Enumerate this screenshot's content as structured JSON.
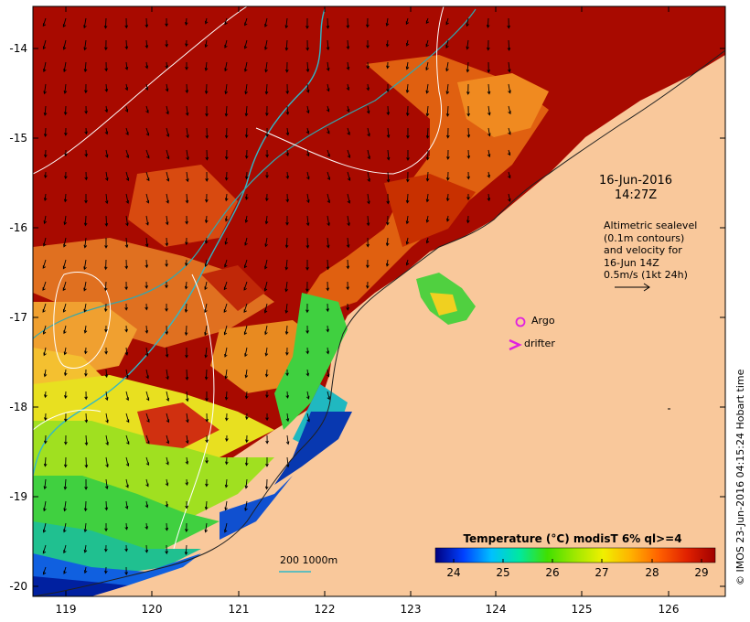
{
  "map": {
    "lat_ticks": [
      "-14",
      "-15",
      "-16",
      "-17",
      "-18",
      "-19",
      "-20"
    ],
    "lon_ticks": [
      "119",
      "120",
      "121",
      "122",
      "123",
      "124",
      "125",
      "126"
    ],
    "date": "16-Jun-2016",
    "time": "14:27Z",
    "info_lines": [
      "Altimetric sealevel",
      "(0.1m contours)",
      "and velocity for",
      "16-Jun 14Z",
      "0.5m/s (1kt 24h)"
    ],
    "argo_label": "Argo",
    "drifter_label": "drifter",
    "depth_label": "200  1000m",
    "credit": "© IMOS 23-Jun-2016 04:15:24 Hobart time",
    "colorbar": {
      "title": "Temperature (°C) modisT 6% ql>=4",
      "ticks": [
        "24",
        "25",
        "26",
        "27",
        "28",
        "29"
      ],
      "colors": [
        "#000080",
        "#0040ff",
        "#00c0ff",
        "#00e8a0",
        "#40e000",
        "#a0e800",
        "#f0f000",
        "#ffb000",
        "#ff6000",
        "#e02000",
        "#a00000"
      ]
    },
    "colors": {
      "land": "#f9c89b",
      "contour_200": "#30b8c8",
      "contour_1000": "#30a8b0",
      "sealevel_contour": "#ffffff",
      "argo": "#e020e0",
      "drifter": "#e020e0"
    }
  }
}
